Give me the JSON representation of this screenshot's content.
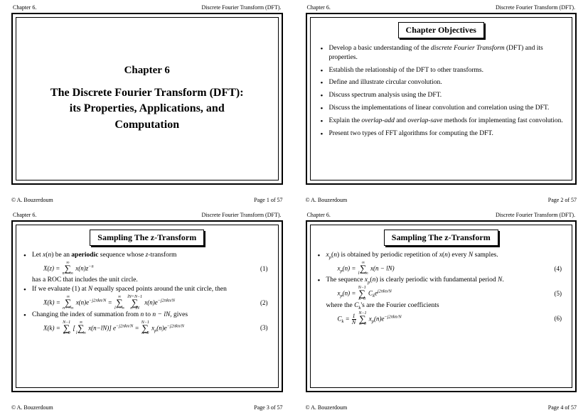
{
  "meta": {
    "chapter_label": "Chapter 6.",
    "doc_title": "Discrete Fourier Transform (DFT).",
    "author": "© A. Bouzerdoum"
  },
  "slide1": {
    "page": "Page 1 of 57",
    "chapter_num": "Chapter 6",
    "title_line1": "The Discrete Fourier Transform (DFT):",
    "title_line2": "its Properties, Applications, and",
    "title_line3": "Computation"
  },
  "slide2": {
    "page": "Page 2 of 57",
    "section_title": "Chapter Objectives",
    "bullets": [
      "Develop a basic understanding of the <i>discrete Fourier Transform</i> (DFT) and its properties.",
      "Establish the relationship of the DFT to other transforms.",
      "Define and illustrate circular convolution.",
      "Discuss spectrum analysis using the DFT.",
      "Discuss the implementations of linear convolution and correlation using the DFT.",
      "Explain the <i>overlap-add</i> and <i>overlap-save</i> methods for implementing fast convolution.",
      "Present two types of FFT algorithms for computing the DFT."
    ]
  },
  "slide3": {
    "page": "Page 3 of 57",
    "section_title": "Sampling The z-Transform",
    "item1": "Let <i>x</i>(<i>n</i>) be an <b>aperiodic</b> sequence whose <i>z</i>-transform",
    "eq1": {
      "body": "X(z) = Σ x(n) z<sup>−n</sup>",
      "sumtop": "∞",
      "sumbot": "n=−∞",
      "num": "(1)"
    },
    "item1b": "has a ROC that includes the unit circle.",
    "item2": "If we evaluate (1) at <i>N</i> equally spaced points around the unit circle, then",
    "eq2": {
      "body": "X(k) = Σ x(n)e<sup>−j2πkn/N</sup> = ΣΣ x(n)e<sup>−j2πkn/N</sup>",
      "num": "(2)"
    },
    "item3": "Changing the index of summation from <i>n</i> to <i>n − lN</i>, gives",
    "eq3": {
      "body": "X(k) = Σ[Σ x(n−lN)]e<sup>−j2πkn/N</sup> = Σ x<sub>p</sub>(n)e<sup>−j2πkn/N</sup>",
      "num": "(3)"
    }
  },
  "slide4": {
    "page": "Page 4 of 57",
    "section_title": "Sampling The z-Transform",
    "item1": "<i>x<sub>p</sub></i>(<i>n</i>) is obtained by periodic repetition of <i>x</i>(<i>n</i>) every <i>N</i> samples.",
    "eq4": {
      "num": "(4)"
    },
    "item2": "The sequence <i>x<sub>p</sub></i>(<i>n</i>) is clearly periodic with fundamental period <i>N</i>.",
    "eq5": {
      "num": "(5)"
    },
    "item2b": "where the <i>C<sub>k</sub></i>'s are the Fourier coefficients",
    "eq6": {
      "num": "(6)"
    }
  },
  "style": {
    "page_bg": "#ffffff",
    "text_color": "#000000",
    "border_color": "#000000",
    "font_family": "Times New Roman",
    "grid": {
      "cols": 2,
      "rows": 2
    },
    "title_fontsize": 16,
    "body_fontsize": 9.5,
    "header_fontsize": 8,
    "section_box_shadow": "2px 2px 0 #000000"
  }
}
